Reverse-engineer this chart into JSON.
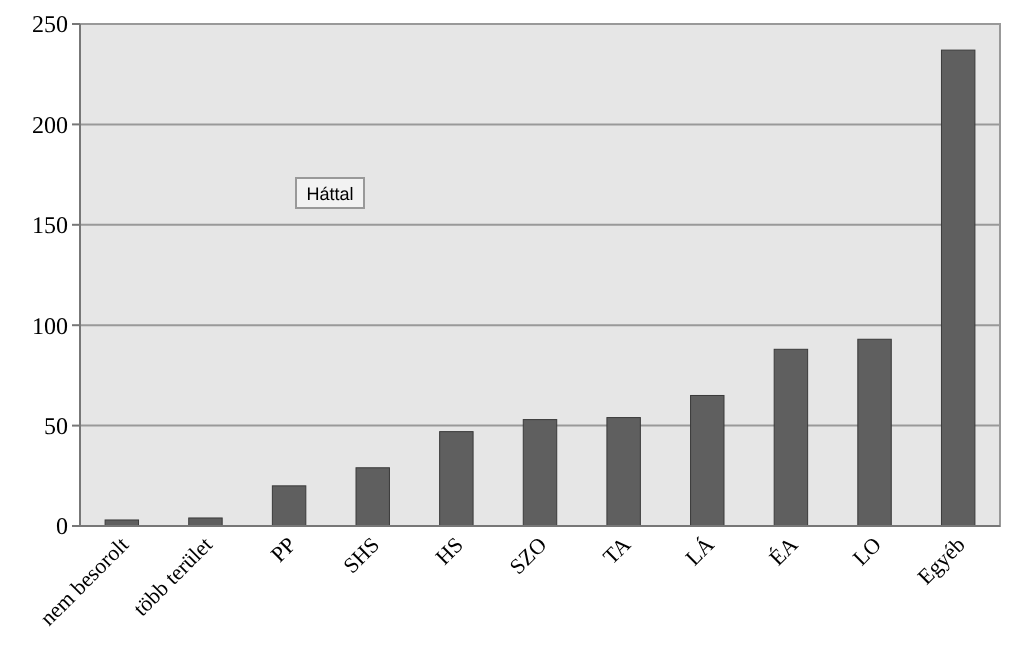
{
  "chart_data": {
    "type": "bar",
    "categories": [
      "nem besorolt",
      "több terület",
      "PP",
      "SHS",
      "HS",
      "SZO",
      "TA",
      "LÁ",
      "ÉA",
      "LO",
      "Egyéb"
    ],
    "values": [
      3,
      4,
      20,
      29,
      47,
      53,
      54,
      65,
      88,
      93,
      237
    ],
    "color": "#5f5f5f",
    "ylim": [
      0,
      250
    ],
    "yticks": [
      0,
      50,
      100,
      150,
      200,
      250
    ],
    "grid": "y",
    "annotations": [
      {
        "text": "Háttal"
      }
    ]
  }
}
